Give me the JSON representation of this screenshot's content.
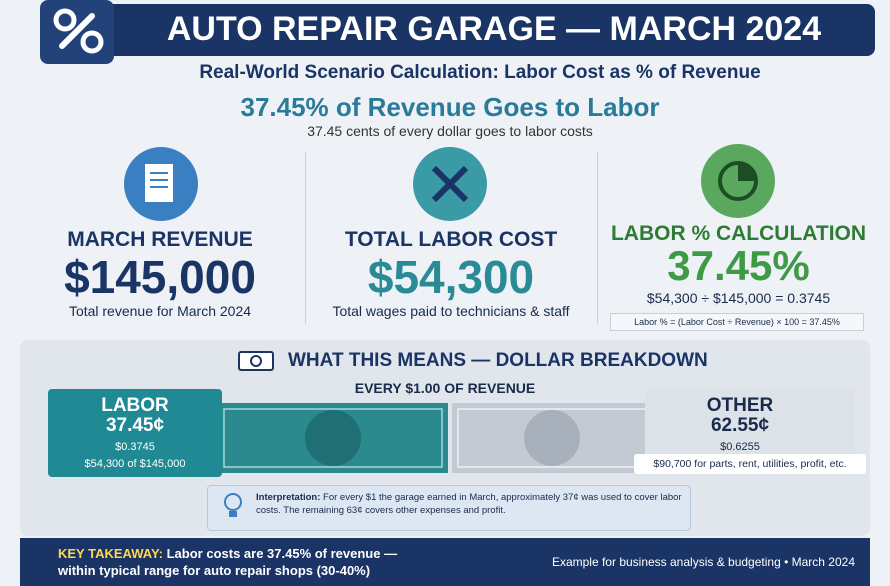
{
  "header": {
    "title": "AUTO REPAIR GARAGE — MARCH 2024",
    "subtitle": "Real-World Scenario Calculation: Labor Cost as % of Revenue"
  },
  "headline": {
    "main": "37.45% of Revenue Goes to Labor",
    "sub": "37.45 cents of every dollar goes to labor costs"
  },
  "cards": [
    {
      "label": "MARCH REVENUE",
      "value": "$145,000",
      "note": "Total revenue for March 2024"
    },
    {
      "label": "TOTAL LABOR COST",
      "value": "$54,300",
      "note": "Total wages paid to technicians & staff"
    },
    {
      "label": "LABOR % CALCULATION",
      "value": "37.45%",
      "note": "$54,300 ÷ $145,000 = 0.3745",
      "formula": "Labor % = (Labor Cost ÷ Revenue) × 100 = 37.45%"
    }
  ],
  "breakdown": {
    "title": "WHAT THIS MEANS — DOLLAR BREAKDOWN",
    "caption": "EVERY $1.00 OF REVENUE",
    "labor": {
      "label": "LABOR",
      "value": "37.45¢",
      "decimal": "$0.3745",
      "detail": "$54,300 of $145,000"
    },
    "other": {
      "label": "OTHER",
      "value": "62.55¢",
      "decimal": "$0.6255",
      "detail": "$90,700 for parts, rent, utilities, profit, etc."
    }
  },
  "interpretation": {
    "lead": "Interpretation:",
    "text": "For every $1 the garage earned in March, approximately 37¢ was used to cover labor costs. The remaining 63¢ covers other expenses and profit."
  },
  "footer": {
    "lead": "KEY TAKEAWAY:",
    "lines": [
      "Labor costs are 37.45% of revenue —",
      "within typical range for auto repair shops (30-40%)"
    ],
    "note": "Example for business analysis & budgeting • March 2024"
  }
}
